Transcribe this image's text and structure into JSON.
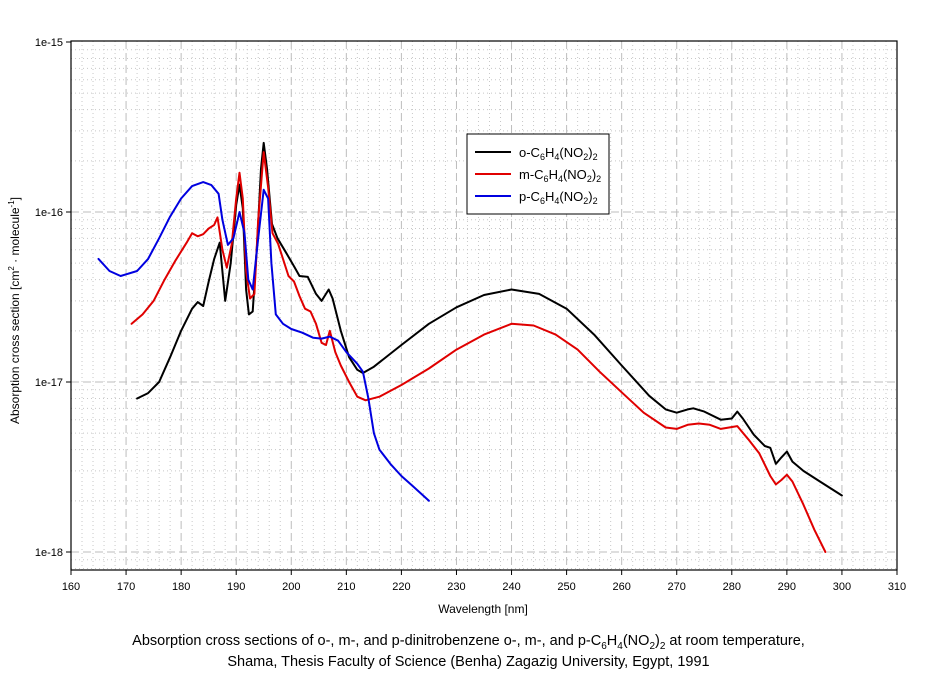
{
  "chart_data": {
    "type": "line",
    "title": "",
    "xlabel": "Wavelength [nm]",
    "ylabel": "Absorption cross section [cm² · molecule⁻¹]",
    "ylabel_parts": {
      "base": "Absorption cross section [cm",
      "sup1": "2",
      "mid": " · molecule",
      "sup2": "-1",
      "end": "]"
    },
    "xlim": [
      160,
      310
    ],
    "ylim": [
      8.5e-19,
      1e-15
    ],
    "yscale": "log",
    "grid": true,
    "x_ticks": [
      "160",
      "170",
      "180",
      "190",
      "200",
      "210",
      "220",
      "230",
      "240",
      "250",
      "260",
      "270",
      "280",
      "290",
      "300",
      "310"
    ],
    "y_ticks": [
      {
        "label": "1e-15",
        "value": 1e-15
      },
      {
        "label": "1e-16",
        "value": 1e-16
      },
      {
        "label": "1e-17",
        "value": 1e-17
      },
      {
        "label": "1e-18",
        "value": 1e-18
      }
    ],
    "legend_position": "top-center",
    "series": [
      {
        "name": "o-C6H4(NO2)2",
        "label_parts": [
          "o-C",
          "6",
          "H",
          "4",
          "(NO",
          "2",
          ")",
          "2"
        ],
        "color": "#000000",
        "points": [
          [
            172,
            8e-18
          ],
          [
            174,
            8.6e-18
          ],
          [
            176,
            1e-17
          ],
          [
            178,
            1.4e-17
          ],
          [
            180,
            2e-17
          ],
          [
            182,
            2.7e-17
          ],
          [
            183,
            2.95e-17
          ],
          [
            184,
            2.8e-17
          ],
          [
            185,
            3.9e-17
          ],
          [
            186,
            5.3e-17
          ],
          [
            187,
            6.6e-17
          ],
          [
            188,
            3e-17
          ],
          [
            189,
            5e-17
          ],
          [
            190,
            1.1e-16
          ],
          [
            190.6,
            1.45e-16
          ],
          [
            191.2,
            1.05e-16
          ],
          [
            191.8,
            3.5e-17
          ],
          [
            192.3,
            2.5e-17
          ],
          [
            193,
            2.6e-17
          ],
          [
            193.8,
            6.5e-17
          ],
          [
            194.5,
            1.8e-16
          ],
          [
            195,
            2.55e-16
          ],
          [
            195.6,
            1.8e-16
          ],
          [
            196.5,
            8.5e-17
          ],
          [
            197.5,
            7e-17
          ],
          [
            199,
            5.8e-17
          ],
          [
            200.5,
            4.8e-17
          ],
          [
            201.5,
            4.2e-17
          ],
          [
            203,
            4.15e-17
          ],
          [
            204.5,
            3.3e-17
          ],
          [
            205.5,
            3e-17
          ],
          [
            206.8,
            3.5e-17
          ],
          [
            207.5,
            3.1e-17
          ],
          [
            209,
            2e-17
          ],
          [
            210.5,
            1.4e-17
          ],
          [
            212,
            1.18e-17
          ],
          [
            213,
            1.13e-17
          ],
          [
            215,
            1.23e-17
          ],
          [
            220,
            1.65e-17
          ],
          [
            225,
            2.2e-17
          ],
          [
            230,
            2.75e-17
          ],
          [
            235,
            3.25e-17
          ],
          [
            240,
            3.5e-17
          ],
          [
            245,
            3.3e-17
          ],
          [
            250,
            2.7e-17
          ],
          [
            255,
            1.9e-17
          ],
          [
            260,
            1.25e-17
          ],
          [
            265,
            8.3e-18
          ],
          [
            268,
            6.9e-18
          ],
          [
            270,
            6.6e-18
          ],
          [
            272,
            6.9e-18
          ],
          [
            273,
            7e-18
          ],
          [
            275,
            6.7e-18
          ],
          [
            278,
            6e-18
          ],
          [
            280,
            6.1e-18
          ],
          [
            281,
            6.7e-18
          ],
          [
            282,
            6.1e-18
          ],
          [
            284,
            4.9e-18
          ],
          [
            286,
            4.2e-18
          ],
          [
            287,
            4.1e-18
          ],
          [
            288,
            3.3e-18
          ],
          [
            289,
            3.6e-18
          ],
          [
            290,
            3.9e-18
          ],
          [
            291,
            3.4e-18
          ],
          [
            293,
            3e-18
          ],
          [
            296,
            2.6e-18
          ],
          [
            300,
            2.15e-18
          ]
        ]
      },
      {
        "name": "m-C6H4(NO2)2",
        "label_parts": [
          "m-C",
          "6",
          "H",
          "4",
          "(NO",
          "2",
          ")",
          "2"
        ],
        "color": "#e00000",
        "points": [
          [
            171,
            2.2e-17
          ],
          [
            173,
            2.5e-17
          ],
          [
            175,
            3e-17
          ],
          [
            177,
            4e-17
          ],
          [
            179,
            5.2e-17
          ],
          [
            181,
            6.6e-17
          ],
          [
            182,
            7.5e-17
          ],
          [
            183,
            7.2e-17
          ],
          [
            184,
            7.4e-17
          ],
          [
            185,
            8e-17
          ],
          [
            186,
            8.4e-17
          ],
          [
            186.6,
            9.3e-17
          ],
          [
            187.5,
            6e-17
          ],
          [
            188.3,
            4.7e-17
          ],
          [
            189.2,
            6.5e-17
          ],
          [
            190,
            1.2e-16
          ],
          [
            190.6,
            1.7e-16
          ],
          [
            191.2,
            1.2e-16
          ],
          [
            191.8,
            4.5e-17
          ],
          [
            192.5,
            3.1e-17
          ],
          [
            193.3,
            3.3e-17
          ],
          [
            194,
            9e-17
          ],
          [
            195,
            2.25e-16
          ],
          [
            195.8,
            1.4e-16
          ],
          [
            196.6,
            7.5e-17
          ],
          [
            197.6,
            6.5e-17
          ],
          [
            198.5,
            5.3e-17
          ],
          [
            199.5,
            4.2e-17
          ],
          [
            200.5,
            3.9e-17
          ],
          [
            201.5,
            3.2e-17
          ],
          [
            202.5,
            2.7e-17
          ],
          [
            203.5,
            2.6e-17
          ],
          [
            204.5,
            2.2e-17
          ],
          [
            205.5,
            1.7e-17
          ],
          [
            206.3,
            1.65e-17
          ],
          [
            207,
            2e-17
          ],
          [
            208,
            1.5e-17
          ],
          [
            209,
            1.25e-17
          ],
          [
            210.5,
            1e-17
          ],
          [
            212,
            8.2e-18
          ],
          [
            213.5,
            7.8e-18
          ],
          [
            216,
            8.2e-18
          ],
          [
            220,
            9.6e-18
          ],
          [
            225,
            1.2e-17
          ],
          [
            230,
            1.55e-17
          ],
          [
            235,
            1.9e-17
          ],
          [
            240,
            2.2e-17
          ],
          [
            244,
            2.15e-17
          ],
          [
            248,
            1.9e-17
          ],
          [
            252,
            1.55e-17
          ],
          [
            256,
            1.15e-17
          ],
          [
            260,
            8.7e-18
          ],
          [
            264,
            6.6e-18
          ],
          [
            268,
            5.4e-18
          ],
          [
            270,
            5.3e-18
          ],
          [
            272,
            5.6e-18
          ],
          [
            274,
            5.7e-18
          ],
          [
            276,
            5.6e-18
          ],
          [
            278,
            5.3e-18
          ],
          [
            281,
            5.5e-18
          ],
          [
            283,
            4.6e-18
          ],
          [
            285,
            3.8e-18
          ],
          [
            287,
            2.8e-18
          ],
          [
            288,
            2.5e-18
          ],
          [
            289,
            2.65e-18
          ],
          [
            290,
            2.85e-18
          ],
          [
            291,
            2.6e-18
          ],
          [
            293,
            1.9e-18
          ],
          [
            295,
            1.35e-18
          ],
          [
            297,
            1e-18
          ]
        ]
      },
      {
        "name": "p-C6H4(NO2)2",
        "label_parts": [
          "p-C",
          "6",
          "H",
          "4",
          "(NO",
          "2",
          ")",
          "2"
        ],
        "color": "#0000e0",
        "points": [
          [
            165,
            5.3e-17
          ],
          [
            167,
            4.5e-17
          ],
          [
            169,
            4.2e-17
          ],
          [
            172,
            4.5e-17
          ],
          [
            174,
            5.3e-17
          ],
          [
            176,
            7e-17
          ],
          [
            178,
            9.4e-17
          ],
          [
            180,
            1.2e-16
          ],
          [
            182,
            1.42e-16
          ],
          [
            184,
            1.5e-16
          ],
          [
            185.5,
            1.44e-16
          ],
          [
            186.8,
            1.28e-16
          ],
          [
            187.5,
            9e-17
          ],
          [
            188.5,
            6.4e-17
          ],
          [
            189.5,
            7e-17
          ],
          [
            190.6,
            1e-16
          ],
          [
            191.5,
            7.5e-17
          ],
          [
            192.2,
            4e-17
          ],
          [
            193,
            3.5e-17
          ],
          [
            194,
            7e-17
          ],
          [
            195,
            1.35e-16
          ],
          [
            195.8,
            1.2e-16
          ],
          [
            196.4,
            5e-17
          ],
          [
            197.2,
            2.5e-17
          ],
          [
            198.5,
            2.2e-17
          ],
          [
            200,
            2.05e-17
          ],
          [
            202,
            1.95e-17
          ],
          [
            204,
            1.82e-17
          ],
          [
            205.5,
            1.8e-17
          ],
          [
            207,
            1.85e-17
          ],
          [
            208.5,
            1.75e-17
          ],
          [
            210,
            1.5e-17
          ],
          [
            212,
            1.28e-17
          ],
          [
            213,
            1.15e-17
          ],
          [
            214,
            8e-18
          ],
          [
            215,
            5e-18
          ],
          [
            216,
            4e-18
          ],
          [
            218,
            3.3e-18
          ],
          [
            220,
            2.8e-18
          ],
          [
            222,
            2.45e-18
          ],
          [
            225,
            2e-18
          ]
        ]
      }
    ]
  },
  "caption": {
    "line1_prefix": "Absorption cross sections of o-, m-, and p-dinitrobenzene o-, m-, and p-C",
    "line1_sub1": "6",
    "line1_mid1": "H",
    "line1_sub2": "4",
    "line1_mid2": "(NO",
    "line1_sub3": "2",
    "line1_mid3": ")",
    "line1_sub4": "2",
    "line1_suffix": " at room temperature,",
    "line2": "Shama, Thesis Faculty of Science (Benha) Zagazig University, Egypt, 1991"
  }
}
